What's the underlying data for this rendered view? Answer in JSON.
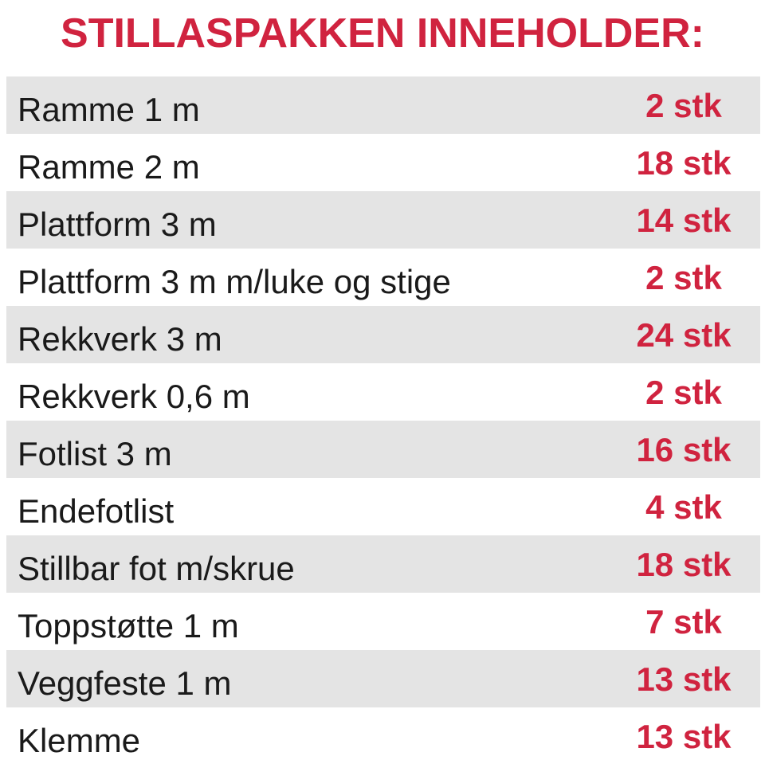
{
  "title": "STILLASPAKKEN INNEHOLDER:",
  "colors": {
    "accent": "#d0233f",
    "row_shade": "#e4e4e4",
    "text": "#1a1a1a"
  },
  "items": [
    {
      "name": "Ramme 1 m",
      "qty": "2 stk"
    },
    {
      "name": "Ramme 2 m",
      "qty": "18 stk"
    },
    {
      "name": "Plattform 3 m",
      "qty": "14 stk"
    },
    {
      "name": "Plattform 3 m m/luke og stige",
      "qty": "2 stk"
    },
    {
      "name": "Rekkverk 3 m",
      "qty": "24 stk"
    },
    {
      "name": "Rekkverk 0,6 m",
      "qty": "2 stk"
    },
    {
      "name": "Fotlist 3 m",
      "qty": "16 stk"
    },
    {
      "name": "Endefotlist",
      "qty": "4 stk"
    },
    {
      "name": "Stillbar fot m/skrue",
      "qty": "18 stk"
    },
    {
      "name": "Toppstøtte 1 m",
      "qty": "7 stk"
    },
    {
      "name": "Veggfeste 1 m",
      "qty": "13 stk"
    },
    {
      "name": "Klemme",
      "qty": "13 stk"
    }
  ]
}
